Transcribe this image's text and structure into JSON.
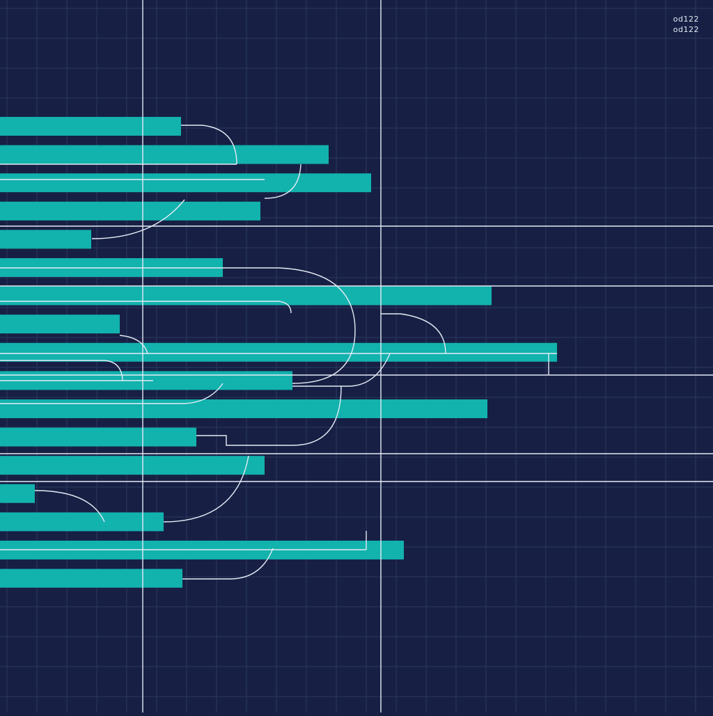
{
  "corner_labels": [
    "od122",
    "od122"
  ],
  "colors": {
    "background": "#172044",
    "grid": "#2b3760",
    "bar": "#12b2ad",
    "connector": "#e6ebf5"
  },
  "chart_data": {
    "type": "bar",
    "orientation": "horizontal",
    "title": "",
    "xlabel": "",
    "ylabel": "",
    "xlim": [
      0,
      1024
    ],
    "grid": true,
    "values": [
      260,
      472,
      533,
      374,
      131,
      320,
      706,
      172,
      800,
      420,
      700,
      282,
      380,
      50,
      235,
      580,
      262
    ]
  }
}
